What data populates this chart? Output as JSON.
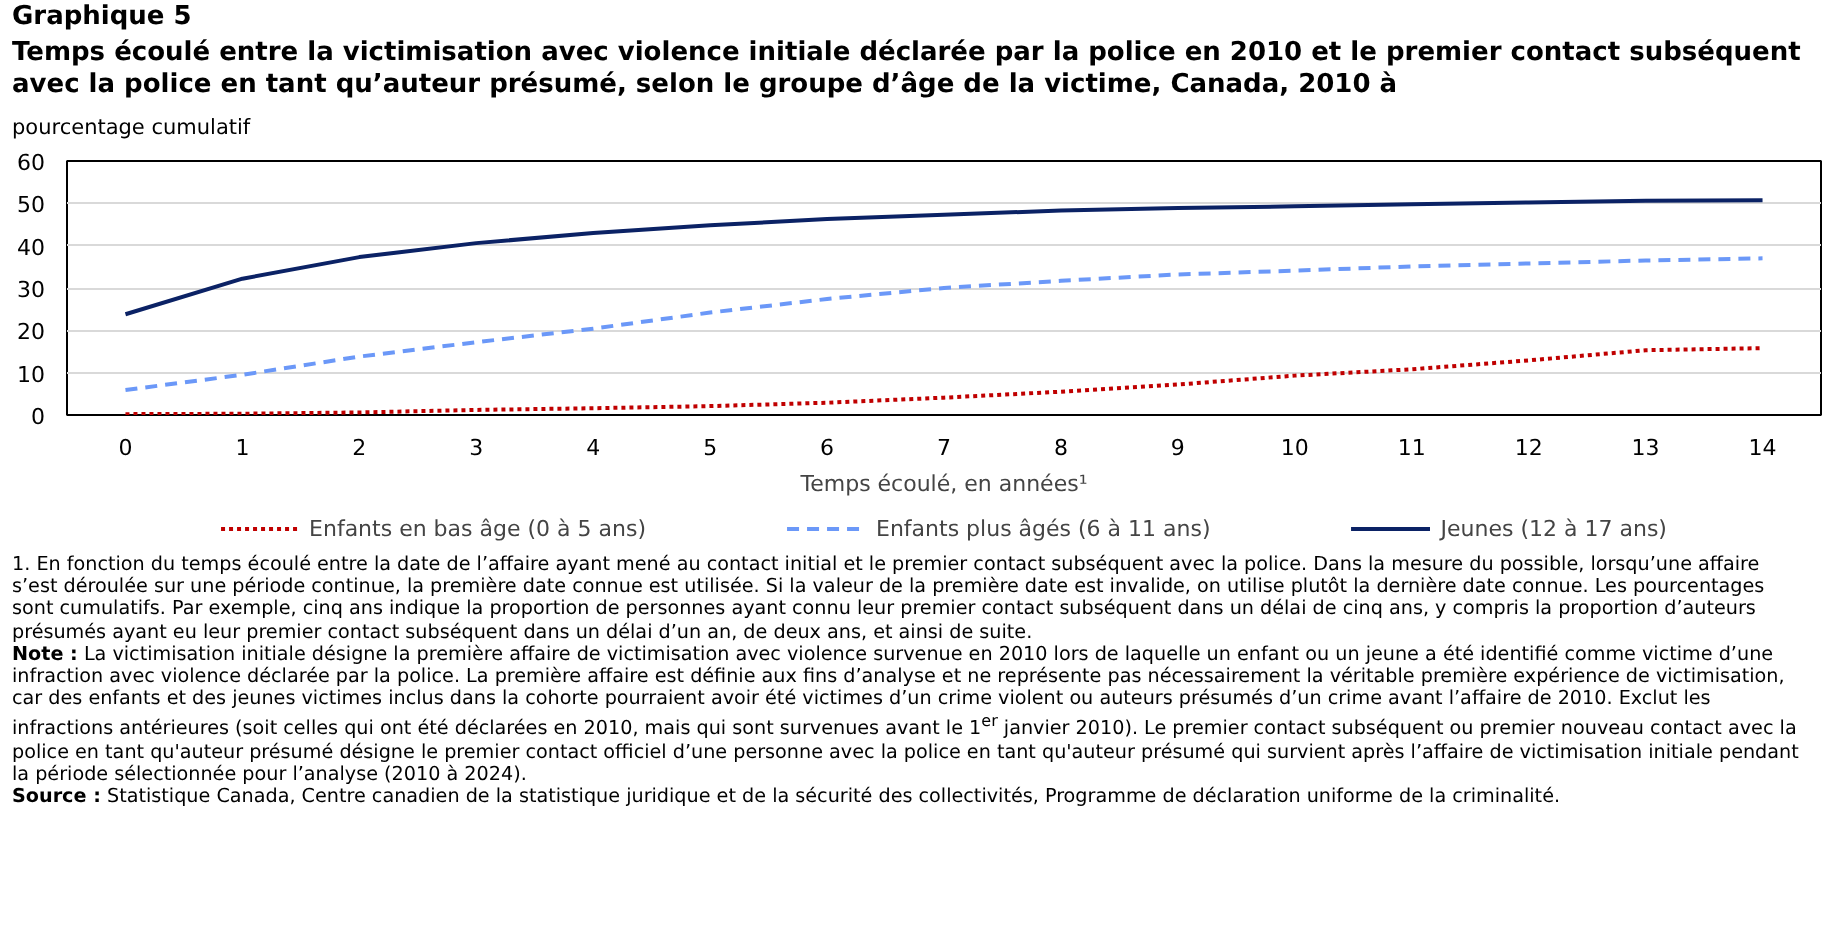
{
  "chart_data": {
    "type": "line",
    "title": "Graphique 5",
    "subtitle": "Temps écoulé entre la victimisation avec violence initiale déclarée par la police en 2010 et le premier contact subséquent avec la police en tant qu’auteur présumé, selon le groupe d’âge de la victime, Canada, 2010 à",
    "ylabel": "pourcentage cumulatif",
    "xlabel": "Temps écoulé, en années¹",
    "x": [
      0,
      1,
      2,
      3,
      4,
      5,
      6,
      7,
      8,
      9,
      10,
      11,
      12,
      13,
      14
    ],
    "xlim": [
      -0.5,
      14.5
    ],
    "xticks": [
      0,
      1,
      2,
      3,
      4,
      5,
      6,
      7,
      8,
      9,
      10,
      11,
      12,
      13,
      14
    ],
    "ylim": [
      0,
      60
    ],
    "yticks": [
      0,
      10,
      20,
      30,
      40,
      50,
      60
    ],
    "grid": "y",
    "legend": "bottom",
    "series": [
      {
        "name": "Enfants en bas âge (0 à 5 ans)",
        "color": "#c00000",
        "line_style": "dotted",
        "values": [
          0.2,
          0.3,
          0.6,
          1.2,
          1.6,
          2.1,
          2.9,
          4.1,
          5.5,
          7.2,
          9.3,
          10.8,
          12.9,
          15.3,
          15.8
        ]
      },
      {
        "name": "Enfants plus âgés (6 à 11 ans)",
        "color": "#6b98f8",
        "line_style": "dashed",
        "values": [
          5.9,
          9.5,
          13.8,
          17.2,
          20.4,
          24.2,
          27.4,
          30.0,
          31.7,
          33.2,
          34.1,
          35.1,
          35.8,
          36.5,
          37.0
        ]
      },
      {
        "name": "Jeunes (12 à 17 ans)",
        "color": "#0b2265",
        "line_style": "solid",
        "values": [
          23.8,
          32.2,
          37.3,
          40.6,
          43.0,
          44.8,
          46.3,
          47.3,
          48.3,
          48.9,
          49.3,
          49.8,
          50.2,
          50.6,
          50.7
        ]
      }
    ],
    "annotations": [
      "1. En fonction du temps écoulé entre la date de l’affaire ayant mené au contact initial et le premier contact subséquent avec la police. Dans la mesure du possible, lorsqu’une affaire s’est déroulée sur une période continue, la première date connue est utilisée. Si la valeur de la première date est invalide, on utilise plutôt la dernière date connue. Les pourcentages sont cumulatifs. Par exemple, cinq ans indique la proportion de personnes ayant connu leur premier contact subséquent dans un délai de cinq ans, y compris la proportion d’auteurs présumés ayant eu leur premier contact subséquent dans un délai d’un an, de deux ans, et ainsi de suite.",
      "Note : La victimisation initiale désigne la première affaire de victimisation avec violence survenue en 2010 lors de laquelle un enfant ou un jeune a été identifié comme victime d’une infraction avec violence déclarée par la police. La première affaire est définie aux fins d’analyse et ne représente pas nécessairement la véritable première expérience de victimisation, car des enfants et des jeunes victimes inclus dans la cohorte pourraient avoir été victimes d’un crime violent ou auteurs présumés d’un crime avant l’affaire de 2010. Exclut les infractions antérieures (soit celles qui ont été déclarées en 2010, mais qui sont survenues avant le 1$^{er}$ janvier 2010). Le premier contact subséquent ou premier nouveau contact avec la police en tant qu'auteur présumé désigne le premier contact officiel d’une personne avec la police en tant qu'auteur présumé qui survient après l’affaire de victimisation initiale pendant la période sélectionnée pour l’analyse (2010 à 2024).",
      "Source : Statistique Canada, Centre canadien de la statistique juridique et de la sécurité des collectivités, Programme de déclaration uniforme de la criminalité."
    ]
  }
}
